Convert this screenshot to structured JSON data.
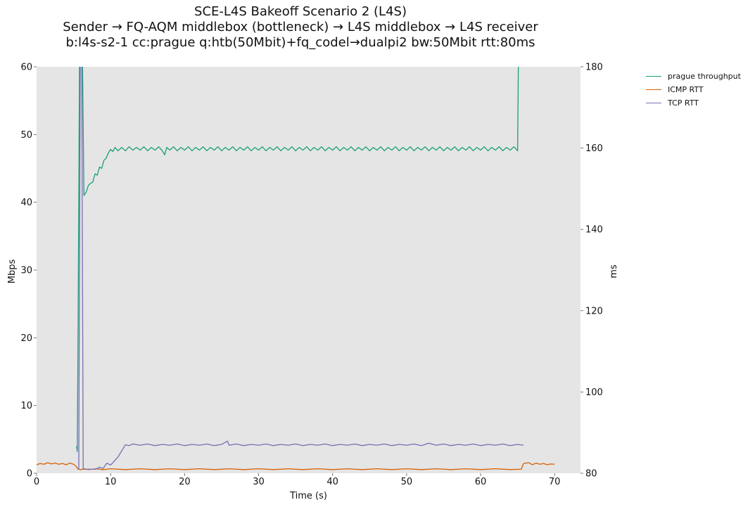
{
  "chart_data": {
    "type": "line",
    "title": "SCE-L4S Bakeoff Scenario 2 (L4S)",
    "subtitle": [
      "Sender → FQ-AQM middlebox (bottleneck) → L4S middlebox → L4S receiver",
      "b:l4s-s2-1 cc:prague q:htb(50Mbit)+fq_codel→dualpi2 bw:50Mbit rtt:80ms"
    ],
    "xlabel": "Time (s)",
    "ylabel_left": "Mbps",
    "ylabel_right": "ms",
    "xlim": [
      0,
      73.5
    ],
    "ylim_left": [
      0,
      60
    ],
    "ylim_right": [
      80,
      180
    ],
    "x_ticks": [
      0,
      10,
      20,
      30,
      40,
      50,
      60,
      70
    ],
    "y_ticks_left": [
      0,
      10,
      20,
      30,
      40,
      50,
      60
    ],
    "y_ticks_right": [
      80,
      100,
      120,
      140,
      160,
      180
    ],
    "grid": false,
    "legend_position": "outside-top-right",
    "series": [
      {
        "name": "prague throughput",
        "axis": "left",
        "color": "#1b9e77",
        "points": [
          [
            5.4,
            4
          ],
          [
            5.5,
            3.2
          ],
          [
            5.6,
            20
          ],
          [
            5.8,
            61
          ],
          [
            6.2,
            61
          ],
          [
            6.4,
            41
          ],
          [
            6.7,
            41.5
          ],
          [
            7.0,
            42.5
          ],
          [
            7.3,
            42.8
          ],
          [
            7.6,
            43
          ],
          [
            7.9,
            44.2
          ],
          [
            8.2,
            44
          ],
          [
            8.5,
            45.2
          ],
          [
            8.8,
            45
          ],
          [
            9.1,
            46.2
          ],
          [
            9.4,
            46.5
          ],
          [
            9.7,
            47.3
          ],
          [
            10.0,
            47.8
          ],
          [
            10.3,
            47.5
          ],
          [
            10.6,
            48.1
          ],
          [
            11.0,
            47.6
          ],
          [
            11.5,
            48.1
          ],
          [
            12.0,
            47.6
          ],
          [
            12.5,
            48.2
          ],
          [
            13.0,
            47.7
          ],
          [
            13.5,
            48.1
          ],
          [
            14.0,
            47.7
          ],
          [
            14.5,
            48.2
          ],
          [
            15.0,
            47.6
          ],
          [
            15.5,
            48.1
          ],
          [
            16.0,
            47.7
          ],
          [
            16.5,
            48.2
          ],
          [
            17.0,
            47.6
          ],
          [
            17.3,
            47.0
          ],
          [
            17.6,
            48.1
          ],
          [
            18.0,
            47.7
          ],
          [
            18.5,
            48.2
          ],
          [
            19.0,
            47.6
          ],
          [
            19.5,
            48.1
          ],
          [
            20.0,
            47.7
          ],
          [
            20.5,
            48.2
          ],
          [
            21.0,
            47.6
          ],
          [
            21.5,
            48.1
          ],
          [
            22.0,
            47.7
          ],
          [
            22.5,
            48.2
          ],
          [
            23.0,
            47.6
          ],
          [
            23.5,
            48.1
          ],
          [
            24.0,
            47.7
          ],
          [
            24.5,
            48.2
          ],
          [
            25.0,
            47.6
          ],
          [
            25.5,
            48.1
          ],
          [
            26.0,
            47.7
          ],
          [
            26.5,
            48.2
          ],
          [
            27.0,
            47.6
          ],
          [
            27.5,
            48.1
          ],
          [
            28.0,
            47.7
          ],
          [
            28.5,
            48.2
          ],
          [
            29.0,
            47.6
          ],
          [
            29.5,
            48.1
          ],
          [
            30.0,
            47.7
          ],
          [
            30.5,
            48.2
          ],
          [
            31.0,
            47.6
          ],
          [
            31.5,
            48.1
          ],
          [
            32.0,
            47.7
          ],
          [
            32.5,
            48.2
          ],
          [
            33.0,
            47.6
          ],
          [
            33.5,
            48.1
          ],
          [
            34.0,
            47.7
          ],
          [
            34.5,
            48.2
          ],
          [
            35.0,
            47.6
          ],
          [
            35.5,
            48.1
          ],
          [
            36.0,
            47.7
          ],
          [
            36.5,
            48.2
          ],
          [
            37.0,
            47.6
          ],
          [
            37.5,
            48.1
          ],
          [
            38.0,
            47.7
          ],
          [
            38.5,
            48.2
          ],
          [
            39.0,
            47.6
          ],
          [
            39.5,
            48.1
          ],
          [
            40.0,
            47.7
          ],
          [
            40.5,
            48.2
          ],
          [
            41.0,
            47.6
          ],
          [
            41.5,
            48.1
          ],
          [
            42.0,
            47.7
          ],
          [
            42.5,
            48.2
          ],
          [
            43.0,
            47.6
          ],
          [
            43.5,
            48.1
          ],
          [
            44.0,
            47.7
          ],
          [
            44.5,
            48.2
          ],
          [
            45.0,
            47.6
          ],
          [
            45.5,
            48.1
          ],
          [
            46.0,
            47.7
          ],
          [
            46.5,
            48.2
          ],
          [
            47.0,
            47.6
          ],
          [
            47.5,
            48.1
          ],
          [
            48.0,
            47.7
          ],
          [
            48.5,
            48.2
          ],
          [
            49.0,
            47.6
          ],
          [
            49.5,
            48.1
          ],
          [
            50.0,
            47.7
          ],
          [
            50.5,
            48.2
          ],
          [
            51.0,
            47.6
          ],
          [
            51.5,
            48.1
          ],
          [
            52.0,
            47.7
          ],
          [
            52.5,
            48.2
          ],
          [
            53.0,
            47.6
          ],
          [
            53.5,
            48.1
          ],
          [
            54.0,
            47.7
          ],
          [
            54.5,
            48.2
          ],
          [
            55.0,
            47.6
          ],
          [
            55.5,
            48.1
          ],
          [
            56.0,
            47.7
          ],
          [
            56.5,
            48.2
          ],
          [
            57.0,
            47.6
          ],
          [
            57.5,
            48.1
          ],
          [
            58.0,
            47.7
          ],
          [
            58.5,
            48.2
          ],
          [
            59.0,
            47.6
          ],
          [
            59.5,
            48.1
          ],
          [
            60.0,
            47.7
          ],
          [
            60.5,
            48.2
          ],
          [
            61.0,
            47.6
          ],
          [
            61.5,
            48.1
          ],
          [
            62.0,
            47.7
          ],
          [
            62.5,
            48.2
          ],
          [
            63.0,
            47.6
          ],
          [
            63.5,
            48.1
          ],
          [
            64.0,
            47.7
          ],
          [
            64.5,
            48.2
          ],
          [
            65.0,
            47.6
          ],
          [
            65.1,
            60
          ]
        ]
      },
      {
        "name": "ICMP RTT",
        "axis": "right",
        "color": "#d95f02",
        "points": [
          [
            0,
            82.1
          ],
          [
            0.5,
            82.4
          ],
          [
            1.0,
            82.2
          ],
          [
            1.5,
            82.6
          ],
          [
            2.0,
            82.3
          ],
          [
            2.5,
            82.5
          ],
          [
            3.0,
            82.2
          ],
          [
            3.5,
            82.4
          ],
          [
            4.0,
            82.1
          ],
          [
            4.5,
            82.5
          ],
          [
            5.0,
            82.2
          ],
          [
            5.3,
            81.8
          ],
          [
            5.6,
            81.0
          ],
          [
            6.0,
            80.9
          ],
          [
            6.5,
            81.1
          ],
          [
            7.0,
            80.9
          ],
          [
            8.0,
            81.1
          ],
          [
            9.0,
            80.9
          ],
          [
            10.0,
            81.1
          ],
          [
            12.0,
            80.9
          ],
          [
            14.0,
            81.1
          ],
          [
            16.0,
            80.9
          ],
          [
            18.0,
            81.1
          ],
          [
            20.0,
            80.9
          ],
          [
            22.0,
            81.1
          ],
          [
            24.0,
            80.9
          ],
          [
            26.0,
            81.1
          ],
          [
            28.0,
            80.9
          ],
          [
            30.0,
            81.1
          ],
          [
            32.0,
            80.9
          ],
          [
            34.0,
            81.1
          ],
          [
            36.0,
            80.9
          ],
          [
            38.0,
            81.1
          ],
          [
            40.0,
            80.9
          ],
          [
            42.0,
            81.1
          ],
          [
            44.0,
            80.9
          ],
          [
            46.0,
            81.1
          ],
          [
            48.0,
            80.9
          ],
          [
            50.0,
            81.1
          ],
          [
            52.0,
            80.9
          ],
          [
            54.0,
            81.1
          ],
          [
            56.0,
            80.9
          ],
          [
            58.0,
            81.1
          ],
          [
            60.0,
            80.9
          ],
          [
            62.0,
            81.1
          ],
          [
            64.0,
            80.9
          ],
          [
            65.5,
            81.0
          ],
          [
            65.8,
            82.4
          ],
          [
            66.5,
            82.6
          ],
          [
            67.0,
            82.1
          ],
          [
            67.5,
            82.5
          ],
          [
            68.0,
            82.2
          ],
          [
            68.5,
            82.4
          ],
          [
            69.0,
            82.1
          ],
          [
            69.5,
            82.3
          ],
          [
            70.0,
            82.2
          ]
        ]
      },
      {
        "name": "TCP RTT",
        "axis": "right",
        "color": "#7570b3",
        "points": [
          [
            5.7,
            81
          ],
          [
            5.9,
            181
          ],
          [
            6.1,
            181
          ],
          [
            6.3,
            81
          ],
          [
            7.0,
            81
          ],
          [
            8.0,
            81
          ],
          [
            8.5,
            81.5
          ],
          [
            9.0,
            81.2
          ],
          [
            9.5,
            82.5
          ],
          [
            10.0,
            82
          ],
          [
            10.5,
            83
          ],
          [
            11.0,
            84
          ],
          [
            11.5,
            85.5
          ],
          [
            12.0,
            87
          ],
          [
            12.5,
            86.8
          ],
          [
            13.0,
            87.2
          ],
          [
            14.0,
            86.9
          ],
          [
            15.0,
            87.2
          ],
          [
            16.0,
            86.8
          ],
          [
            17.0,
            87.1
          ],
          [
            18.0,
            86.9
          ],
          [
            19.0,
            87.2
          ],
          [
            20.0,
            86.8
          ],
          [
            21.0,
            87.1
          ],
          [
            22.0,
            86.9
          ],
          [
            23.0,
            87.2
          ],
          [
            24.0,
            86.8
          ],
          [
            25.0,
            87.1
          ],
          [
            25.8,
            87.9
          ],
          [
            26.0,
            86.9
          ],
          [
            27.0,
            87.2
          ],
          [
            28.0,
            86.8
          ],
          [
            29.0,
            87.1
          ],
          [
            30.0,
            86.9
          ],
          [
            31.0,
            87.2
          ],
          [
            32.0,
            86.8
          ],
          [
            33.0,
            87.1
          ],
          [
            34.0,
            86.9
          ],
          [
            35.0,
            87.2
          ],
          [
            36.0,
            86.8
          ],
          [
            37.0,
            87.1
          ],
          [
            38.0,
            86.9
          ],
          [
            39.0,
            87.2
          ],
          [
            40.0,
            86.8
          ],
          [
            41.0,
            87.1
          ],
          [
            42.0,
            86.9
          ],
          [
            43.0,
            87.2
          ],
          [
            44.0,
            86.8
          ],
          [
            45.0,
            87.1
          ],
          [
            46.0,
            86.9
          ],
          [
            47.0,
            87.2
          ],
          [
            48.0,
            86.8
          ],
          [
            49.0,
            87.1
          ],
          [
            50.0,
            86.9
          ],
          [
            51.0,
            87.2
          ],
          [
            52.0,
            86.8
          ],
          [
            53.0,
            87.4
          ],
          [
            54.0,
            86.9
          ],
          [
            55.0,
            87.2
          ],
          [
            56.0,
            86.8
          ],
          [
            57.0,
            87.1
          ],
          [
            58.0,
            86.9
          ],
          [
            59.0,
            87.2
          ],
          [
            60.0,
            86.8
          ],
          [
            61.0,
            87.1
          ],
          [
            62.0,
            86.9
          ],
          [
            63.0,
            87.2
          ],
          [
            64.0,
            86.8
          ],
          [
            65.0,
            87.1
          ],
          [
            65.8,
            86.9
          ]
        ]
      }
    ]
  }
}
